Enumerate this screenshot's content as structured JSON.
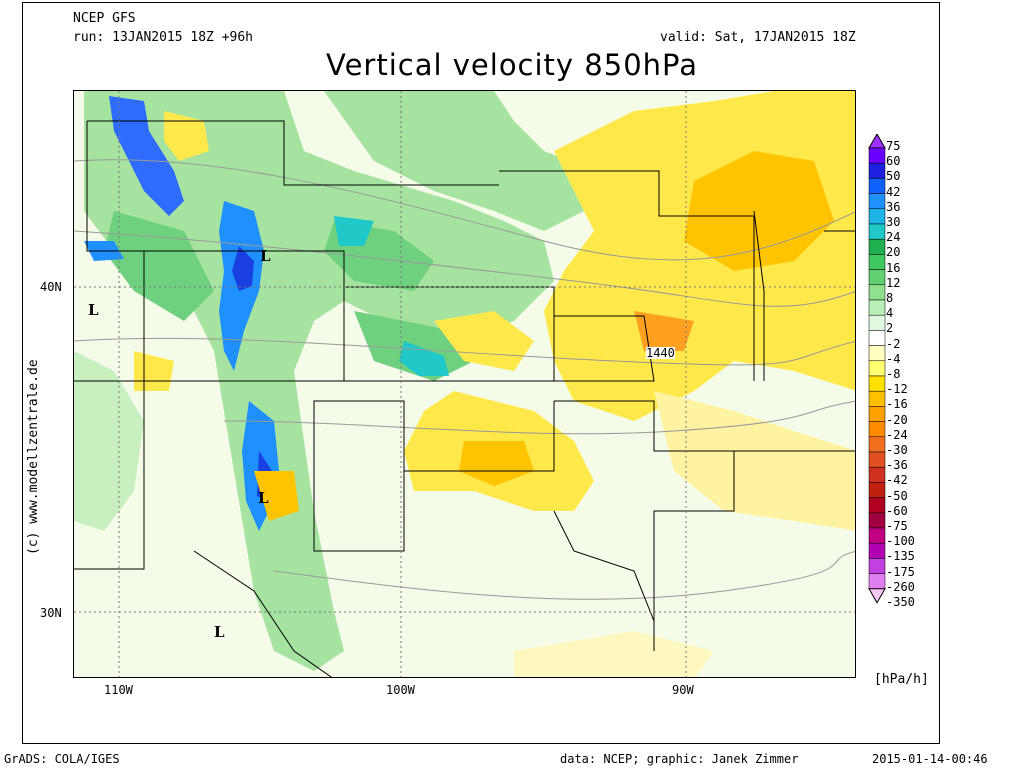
{
  "header": {
    "model": "NCEP GFS",
    "run": "run: 13JAN2015 18Z +96h",
    "valid": "valid: Sat, 17JAN2015 18Z"
  },
  "title": "Vertical velocity 850hPa",
  "map": {
    "lat_labels": [
      "40N",
      "30N"
    ],
    "lon_labels": [
      "110W",
      "100W",
      "90W"
    ],
    "contour_label": "1440",
    "low_marker": "L"
  },
  "credit": "(c) www.modellzentrale.de",
  "scale": {
    "ticks": [
      "75",
      "60",
      "50",
      "42",
      "36",
      "30",
      "24",
      "20",
      "16",
      "12",
      "8",
      "4",
      "2",
      "-2",
      "-4",
      "-8",
      "-12",
      "-16",
      "-20",
      "-24",
      "-30",
      "-36",
      "-42",
      "-50",
      "-60",
      "-75",
      "-100",
      "-135",
      "-175",
      "-260",
      "-350"
    ],
    "colors": [
      "#9b30ff",
      "#6a00ff",
      "#1f1fe0",
      "#1060ff",
      "#1e90ff",
      "#1fb4e6",
      "#20c8c8",
      "#20b050",
      "#40c860",
      "#60d070",
      "#90e090",
      "#b8f0b8",
      "#e0f8e0",
      "#ffffff",
      "#ffffc0",
      "#ffff70",
      "#ffe000",
      "#ffc000",
      "#ffa000",
      "#ff8c00",
      "#f07020",
      "#e05020",
      "#d03020",
      "#c02010",
      "#b00020",
      "#a00040",
      "#c00080",
      "#b000b0",
      "#c040e0",
      "#e080f0",
      "#f8c8f8"
    ],
    "unit": "[hPa/h]"
  },
  "footer": {
    "left": "GrADS: COLA/IGES",
    "center": "data: NCEP; graphic: Janek Zimmer",
    "right": "2015-01-14-00:46"
  }
}
